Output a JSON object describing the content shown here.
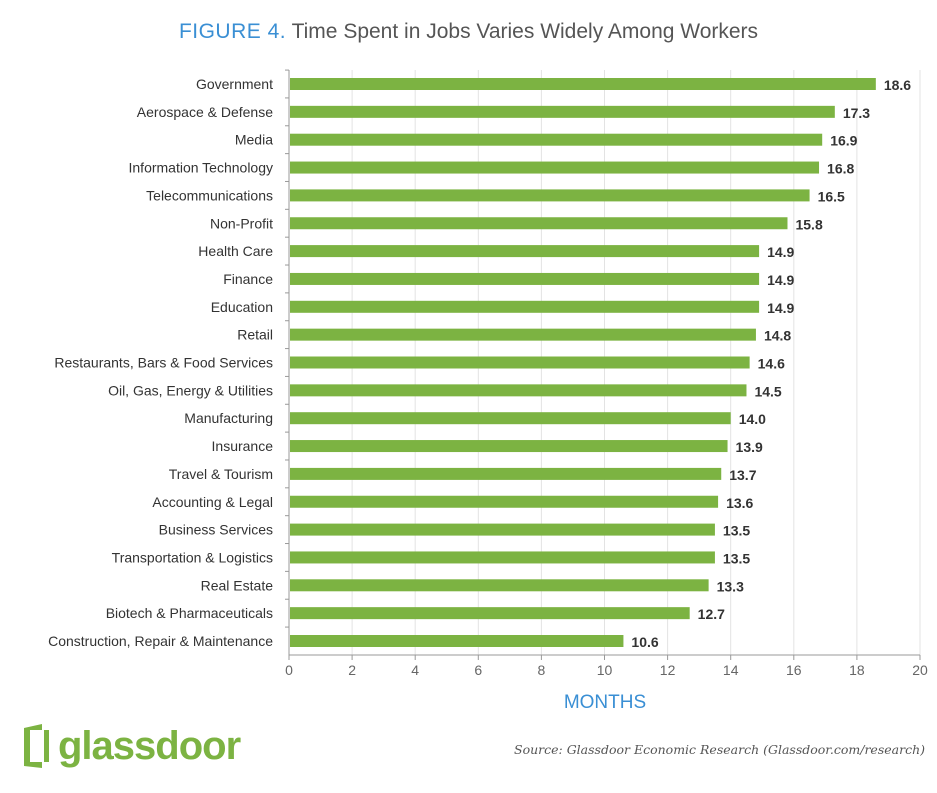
{
  "chart_data": {
    "type": "bar",
    "orientation": "horizontal",
    "title_prefix": "FIGURE 4.",
    "title": "Time Spent in Jobs Varies Widely Among Workers",
    "xlabel": "MONTHS",
    "ylabel": "",
    "xlim": [
      0,
      20
    ],
    "xticks": [
      "0",
      "2",
      "4",
      "6",
      "8",
      "10",
      "12",
      "14",
      "16",
      "18",
      "20"
    ],
    "grid": true,
    "categories": [
      "Government",
      "Aerospace & Defense",
      "Media",
      "Information Technology",
      "Telecommunications",
      "Non-Profit",
      "Health Care",
      "Finance",
      "Education",
      "Retail",
      "Restaurants, Bars & Food Services",
      "Oil, Gas, Energy & Utilities",
      "Manufacturing",
      "Insurance",
      "Travel & Tourism",
      "Accounting & Legal",
      "Business Services",
      "Transportation & Logistics",
      "Real Estate",
      "Biotech & Pharmaceuticals",
      "Construction, Repair & Maintenance"
    ],
    "values": [
      18.6,
      17.3,
      16.9,
      16.8,
      16.5,
      15.8,
      14.9,
      14.9,
      14.9,
      14.8,
      14.6,
      14.5,
      14.0,
      13.9,
      13.7,
      13.6,
      13.5,
      13.5,
      13.3,
      12.7,
      10.6
    ],
    "labels": [
      "18.6",
      "17.3",
      "16.9",
      "16.8",
      "16.5",
      "15.8",
      "14.9",
      "14.9",
      "14.9",
      "14.8",
      "14.6",
      "14.5",
      "14.0",
      "13.9",
      "13.7",
      "13.6",
      "13.5",
      "13.5",
      "13.3",
      "12.7",
      "10.6"
    ],
    "bar_color": "#7cb342"
  },
  "logo": {
    "text": "glassdoor"
  },
  "source": "Source: Glassdoor Economic Research (Glassdoor.com/research)"
}
